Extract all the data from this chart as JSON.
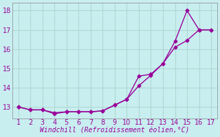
{
  "xlabel": "Windchill (Refroidissement éolien,°C)",
  "background_color": "#c8eef0",
  "grid_color": "#b0d8d0",
  "line_color": "#990099",
  "x_vals": [
    1,
    2,
    3,
    4,
    5,
    6,
    7,
    8,
    9,
    10,
    11,
    12,
    13,
    14,
    15,
    16,
    17
  ],
  "y_line1": [
    13.0,
    12.85,
    12.85,
    12.65,
    12.75,
    12.75,
    12.75,
    12.8,
    13.1,
    13.4,
    14.1,
    14.65,
    15.25,
    16.1,
    16.45,
    17.0,
    17.0
  ],
  "y_line2": [
    13.0,
    12.85,
    12.85,
    12.7,
    12.75,
    12.75,
    12.75,
    12.8,
    13.1,
    13.4,
    14.6,
    14.7,
    15.25,
    16.4,
    18.0,
    17.0,
    17.0
  ],
  "xlim": [
    0.5,
    17.5
  ],
  "ylim": [
    12.4,
    18.4
  ],
  "yticks": [
    13,
    14,
    15,
    16,
    17,
    18
  ],
  "xticks": [
    1,
    2,
    3,
    4,
    5,
    6,
    7,
    8,
    9,
    10,
    11,
    12,
    13,
    14,
    15,
    16,
    17
  ],
  "tick_fontsize": 7,
  "xlabel_fontsize": 7
}
